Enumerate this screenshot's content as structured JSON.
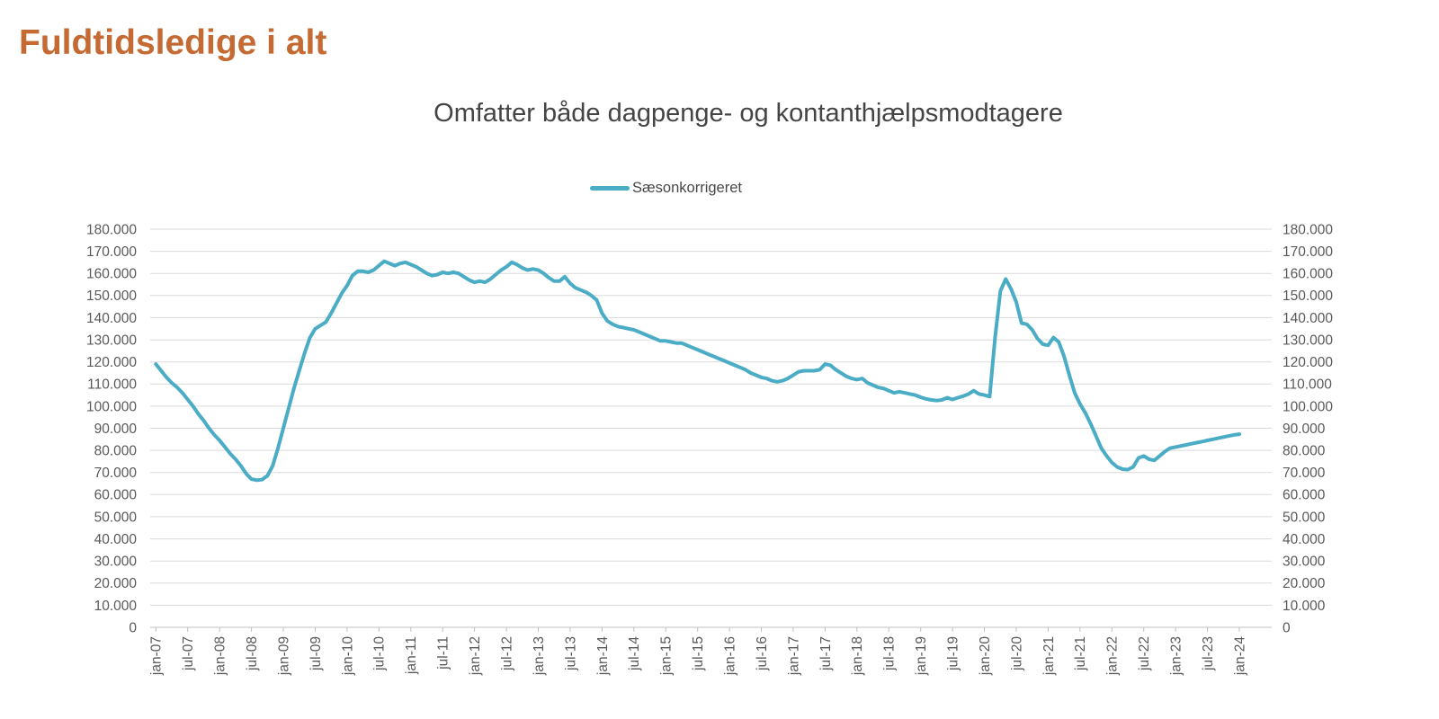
{
  "page": {
    "title": "Fuldtidsledige i alt",
    "subtitle": "Omfatter både dagpenge- og kontanthjælpsmodtagere"
  },
  "legend": {
    "series_label": "Sæsonkorrigeret"
  },
  "colors": {
    "title": "#C56A32",
    "text": "#595959",
    "series": "#4BACC6",
    "gridline": "#DADADA",
    "axis": "#C0C0C0"
  },
  "chart_data": {
    "type": "line",
    "title": "Omfatter både dagpenge- og kontanthjælpsmodtagere",
    "page_heading": "Fuldtidsledige i alt",
    "x_unit": "month",
    "x_start": "jan-07",
    "x_end": "jan-24",
    "x_tick_every_months": 6,
    "x_tick_labels": [
      "jan-07",
      "jul-07",
      "jan-08",
      "jul-08",
      "jan-09",
      "jul-09",
      "jan-10",
      "jul-10",
      "jan-11",
      "jul-11",
      "jan-12",
      "jul-12",
      "jan-13",
      "jul-13",
      "jan-14",
      "jul-14",
      "jan-15",
      "jul-15",
      "jan-16",
      "jul-16",
      "jan-17",
      "jul-17",
      "jan-18",
      "jul-18",
      "jan-19",
      "jul-19",
      "jan-20",
      "jul-20",
      "jan-21",
      "jul-21",
      "jan-22",
      "jul-22",
      "jan-23",
      "jul-23",
      "jan-24"
    ],
    "y_ticks": [
      0,
      10000,
      20000,
      30000,
      40000,
      50000,
      60000,
      70000,
      80000,
      90000,
      100000,
      110000,
      120000,
      130000,
      140000,
      150000,
      160000,
      170000,
      180000
    ],
    "y_tick_labels": [
      "0",
      "10.000",
      "20.000",
      "30.000",
      "40.000",
      "50.000",
      "60.000",
      "70.000",
      "80.000",
      "90.000",
      "100.000",
      "110.000",
      "120.000",
      "130.000",
      "140.000",
      "150.000",
      "160.000",
      "170.000",
      "180.000"
    ],
    "ylim": [
      0,
      180000
    ],
    "grid": "horizontal",
    "dual_y_axis": true,
    "legend_position": "top-center",
    "series": [
      {
        "name": "Sæsonkorrigeret",
        "color": "#4BACC6",
        "values": [
          119000,
          116000,
          113000,
          110500,
          108500,
          106000,
          103000,
          100000,
          96500,
          93500,
          90000,
          87000,
          84500,
          81500,
          78500,
          76000,
          73000,
          69500,
          67000,
          66500,
          66800,
          68500,
          73000,
          81000,
          90000,
          99000,
          108000,
          116000,
          124000,
          131000,
          135000,
          136500,
          138000,
          142000,
          146500,
          151000,
          154500,
          159000,
          161000,
          161000,
          160500,
          161500,
          163500,
          165500,
          164500,
          163500,
          164500,
          165000,
          164000,
          163000,
          161500,
          160000,
          159000,
          159500,
          160500,
          160000,
          160500,
          160000,
          158500,
          157000,
          156000,
          156500,
          156000,
          157500,
          159500,
          161500,
          163000,
          165000,
          164000,
          162500,
          161500,
          162000,
          161500,
          160000,
          158000,
          156500,
          156500,
          158500,
          155500,
          153500,
          152500,
          151500,
          150000,
          148000,
          142000,
          138500,
          137000,
          136000,
          135500,
          135000,
          134500,
          133500,
          132500,
          131500,
          130500,
          129500,
          129500,
          129000,
          128500,
          128500,
          127500,
          126500,
          125500,
          124500,
          123500,
          122500,
          121500,
          120500,
          119500,
          118500,
          117500,
          116500,
          115000,
          114000,
          113000,
          112500,
          111500,
          111000,
          111500,
          112500,
          114000,
          115500,
          116000,
          116000,
          116000,
          116500,
          119000,
          118500,
          116500,
          115000,
          113500,
          112500,
          112000,
          112500,
          110500,
          109500,
          108500,
          108000,
          107000,
          106000,
          106500,
          106000,
          105500,
          105000,
          104000,
          103300,
          102800,
          102500,
          102800,
          103800,
          103000,
          103800,
          104500,
          105500,
          107000,
          105500,
          105000,
          104300,
          131000,
          152000,
          157500,
          153000,
          147000,
          137500,
          137000,
          134500,
          130500,
          128000,
          127500,
          131000,
          129000,
          122500,
          114000,
          106000,
          101000,
          97000,
          92000,
          86500,
          81000,
          77500,
          74500,
          72500,
          71500,
          71300,
          72500,
          76500,
          77500,
          76000,
          75500,
          77500,
          79500,
          81000,
          81500,
          82000,
          82500,
          83000,
          83500,
          84000,
          84500,
          85000,
          85500,
          86000,
          86500,
          87000,
          87300
        ]
      }
    ]
  }
}
